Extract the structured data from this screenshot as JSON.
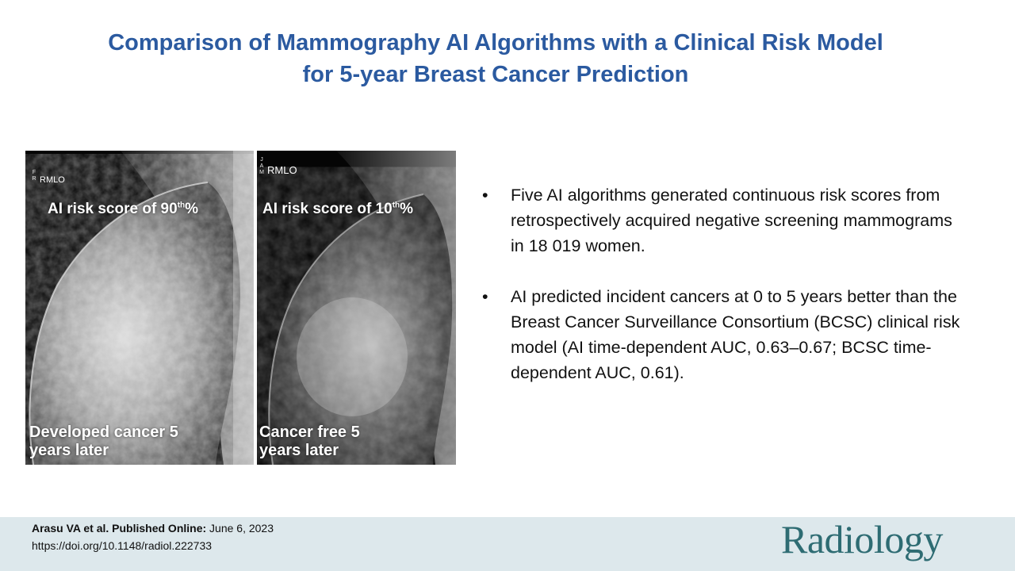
{
  "title": {
    "line1": "Comparison of Mammography AI Algorithms with a Clinical Risk Model",
    "line2": "for 5-year Breast Cancer Prediction"
  },
  "images": {
    "left": {
      "orientation_letters": [
        "F",
        "R"
      ],
      "view_label": "RMLO",
      "score_text": "AI risk score of 90",
      "score_sup": "th",
      "score_suffix": "%",
      "bottom_line1": "Developed cancer 5",
      "bottom_line2": "years later"
    },
    "right": {
      "orientation_letters": [
        "J",
        "A",
        "M"
      ],
      "view_label": "RMLO",
      "score_text": "AI risk score of 10",
      "score_sup": "th",
      "score_suffix": "%",
      "bottom_line1": "Cancer free 5",
      "bottom_line2": "years later"
    }
  },
  "bullets": [
    {
      "marker": "•",
      "text": "Five AI algorithms generated continuous risk scores from retrospectively acquired negative screening mammograms in 18 019 women."
    },
    {
      "marker": "•",
      "text": "AI predicted incident cancers at 0 to 5 years better than the Breast Cancer Surveillance Consortium (BCSC) clinical risk model (AI time-dependent AUC, 0.63–0.67; BCSC time-dependent AUC, 0.61)."
    }
  ],
  "citation": {
    "authors_bold": "Arasu VA et al. Published Online:",
    "date": "June 6, 2023",
    "doi": "https://doi.org/10.1148/radiol.222733"
  },
  "logo": "Radiology",
  "colors": {
    "title": "#2b5aa0",
    "footer_bg": "#dde8ec",
    "logo": "#2e6c73"
  }
}
